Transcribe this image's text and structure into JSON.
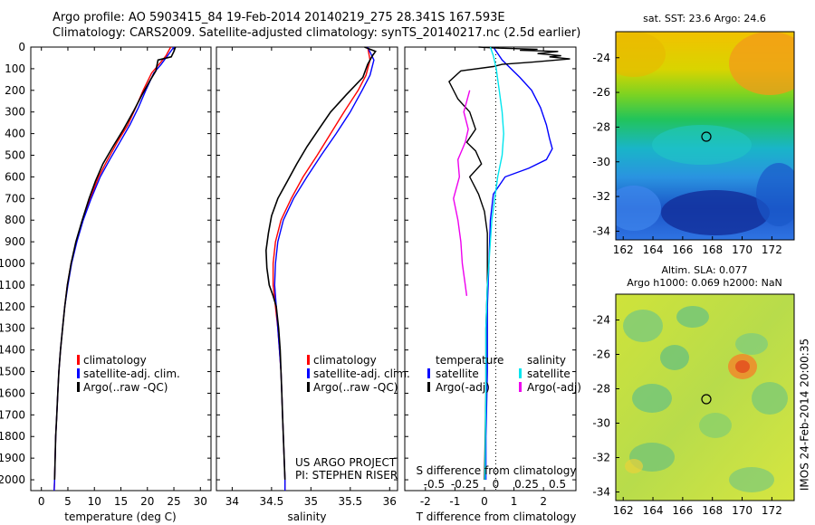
{
  "header": {
    "line1": "Argo profile: AO 5903415_84 19-Feb-2014 20140219_275 28.341S 167.593E",
    "line2": "Climatology: CARS2009. Satellite-adjusted climatology: synTS_20140217.nc (2.5d earlier)"
  },
  "colors": {
    "climatology": "#ff0000",
    "satellite": "#0000ff",
    "argo": "#000000",
    "satellite_salinity": "#00e5ee",
    "argo_salinity": "#ee00ee"
  },
  "credits": {
    "line1": "US ARGO PROJECT",
    "line2": "PI: STEPHEN RISER"
  },
  "timestamp": "IMOS 24-Feb-2014 20:00:35",
  "depth_ticks": [
    "0",
    "100",
    "200",
    "300",
    "400",
    "500",
    "600",
    "700",
    "800",
    "900",
    "1000",
    "1100",
    "1200",
    "1300",
    "1400",
    "1500",
    "1600",
    "1700",
    "1800",
    "1900",
    "2000"
  ],
  "chart_data": [
    {
      "type": "line",
      "panel": "temperature",
      "xlabel": "temperature (deg C)",
      "xlim": [
        -2,
        32
      ],
      "ylim": [
        0,
        2050
      ],
      "y_reversed": true,
      "xticks": [
        "0",
        "5",
        "10",
        "15",
        "20",
        "25",
        "30"
      ],
      "legend": [
        "climatology",
        "satellite-adj. clim.",
        "Argo(..raw -QC)"
      ],
      "series": [
        {
          "name": "climatology",
          "color": "#ff0000",
          "points": [
            [
              24.4,
              0
            ],
            [
              23.5,
              40
            ],
            [
              22.2,
              80
            ],
            [
              20.8,
              120
            ],
            [
              19.2,
              200
            ],
            [
              17.8,
              280
            ],
            [
              16.3,
              360
            ],
            [
              14.3,
              440
            ],
            [
              12.5,
              520
            ],
            [
              10.8,
              600
            ],
            [
              9.2,
              700
            ],
            [
              7.8,
              800
            ],
            [
              6.6,
              900
            ],
            [
              5.6,
              1000
            ],
            [
              4.9,
              1100
            ],
            [
              4.4,
              1200
            ],
            [
              4.0,
              1300
            ],
            [
              3.6,
              1400
            ],
            [
              3.3,
              1500
            ],
            [
              3.1,
              1600
            ],
            [
              2.9,
              1700
            ],
            [
              2.7,
              1800
            ],
            [
              2.6,
              1900
            ],
            [
              2.5,
              2000
            ],
            [
              2.4,
              2050
            ]
          ]
        },
        {
          "name": "satellite-adj. clim.",
          "color": "#0000ff",
          "points": [
            [
              25.0,
              0
            ],
            [
              23.8,
              40
            ],
            [
              22.6,
              80
            ],
            [
              21.2,
              120
            ],
            [
              19.7,
              200
            ],
            [
              18.3,
              280
            ],
            [
              16.7,
              360
            ],
            [
              14.8,
              440
            ],
            [
              12.9,
              520
            ],
            [
              11.1,
              600
            ],
            [
              9.4,
              700
            ],
            [
              7.9,
              800
            ],
            [
              6.7,
              900
            ],
            [
              5.7,
              1000
            ],
            [
              5.0,
              1100
            ],
            [
              4.4,
              1200
            ],
            [
              4.0,
              1300
            ],
            [
              3.6,
              1400
            ],
            [
              3.3,
              1500
            ],
            [
              3.1,
              1600
            ],
            [
              2.9,
              1700
            ],
            [
              2.7,
              1800
            ],
            [
              2.6,
              1900
            ],
            [
              2.5,
              2000
            ],
            [
              2.4,
              2050
            ]
          ]
        },
        {
          "name": "Argo(..raw -QC)",
          "color": "#000000",
          "points": [
            [
              25.3,
              0
            ],
            [
              25.0,
              20
            ],
            [
              24.5,
              45
            ],
            [
              22.0,
              60
            ],
            [
              21.6,
              110
            ],
            [
              20.6,
              150
            ],
            [
              19.0,
              220
            ],
            [
              17.3,
              300
            ],
            [
              15.5,
              380
            ],
            [
              13.5,
              460
            ],
            [
              11.6,
              540
            ],
            [
              10.2,
              620
            ],
            [
              9.0,
              700
            ],
            [
              7.7,
              800
            ],
            [
              6.5,
              900
            ],
            [
              5.6,
              1000
            ],
            [
              4.9,
              1100
            ],
            [
              4.4,
              1200
            ],
            [
              4.0,
              1300
            ],
            [
              3.6,
              1400
            ],
            [
              3.3,
              1500
            ],
            [
              3.1,
              1600
            ],
            [
              2.9,
              1700
            ],
            [
              2.7,
              1800
            ],
            [
              2.6,
              1900
            ],
            [
              2.5,
              2000
            ]
          ]
        }
      ]
    },
    {
      "type": "line",
      "panel": "salinity",
      "xlabel": "salinity",
      "xlim": [
        33.8,
        36.1
      ],
      "ylim": [
        0,
        2050
      ],
      "y_reversed": true,
      "xticks": [
        "34",
        "34.5",
        "35",
        "35.5",
        "36"
      ],
      "legend": [
        "climatology",
        "satellite-adj. clim.",
        "Argo(..raw -QC)"
      ],
      "series": [
        {
          "name": "climatology",
          "color": "#ff0000",
          "points": [
            [
              35.72,
              0
            ],
            [
              35.75,
              60
            ],
            [
              35.7,
              130
            ],
            [
              35.6,
              200
            ],
            [
              35.42,
              300
            ],
            [
              35.25,
              400
            ],
            [
              35.08,
              500
            ],
            [
              34.9,
              600
            ],
            [
              34.75,
              700
            ],
            [
              34.62,
              800
            ],
            [
              34.55,
              900
            ],
            [
              34.52,
              1000
            ],
            [
              34.52,
              1100
            ],
            [
              34.55,
              1200
            ],
            [
              34.58,
              1300
            ],
            [
              34.6,
              1400
            ],
            [
              34.62,
              1500
            ],
            [
              34.63,
              1600
            ],
            [
              34.64,
              1700
            ],
            [
              34.65,
              1800
            ],
            [
              34.66,
              1900
            ],
            [
              34.67,
              2000
            ],
            [
              34.67,
              2050
            ]
          ]
        },
        {
          "name": "satellite-adj. clim.",
          "color": "#0000ff",
          "points": [
            [
              35.72,
              0
            ],
            [
              35.8,
              60
            ],
            [
              35.75,
              130
            ],
            [
              35.65,
              200
            ],
            [
              35.5,
              300
            ],
            [
              35.32,
              400
            ],
            [
              35.13,
              500
            ],
            [
              34.95,
              600
            ],
            [
              34.78,
              700
            ],
            [
              34.65,
              800
            ],
            [
              34.58,
              900
            ],
            [
              34.55,
              1000
            ],
            [
              34.54,
              1100
            ],
            [
              34.56,
              1200
            ],
            [
              34.58,
              1300
            ],
            [
              34.6,
              1400
            ],
            [
              34.62,
              1500
            ],
            [
              34.63,
              1600
            ],
            [
              34.64,
              1700
            ],
            [
              34.65,
              1800
            ],
            [
              34.66,
              1900
            ],
            [
              34.67,
              2000
            ],
            [
              34.67,
              2050
            ]
          ]
        },
        {
          "name": "Argo(..raw -QC)",
          "color": "#000000",
          "points": [
            [
              35.68,
              0
            ],
            [
              35.82,
              20
            ],
            [
              35.78,
              40
            ],
            [
              35.72,
              80
            ],
            [
              35.66,
              140
            ],
            [
              35.45,
              220
            ],
            [
              35.25,
              300
            ],
            [
              35.1,
              380
            ],
            [
              34.95,
              460
            ],
            [
              34.82,
              540
            ],
            [
              34.7,
              620
            ],
            [
              34.58,
              700
            ],
            [
              34.5,
              780
            ],
            [
              34.46,
              860
            ],
            [
              34.43,
              940
            ],
            [
              34.44,
              1020
            ],
            [
              34.47,
              1100
            ],
            [
              34.52,
              1150
            ],
            [
              34.56,
              1200
            ],
            [
              34.59,
              1300
            ],
            [
              34.61,
              1400
            ],
            [
              34.62,
              1500
            ],
            [
              34.63,
              1600
            ],
            [
              34.64,
              1700
            ],
            [
              34.65,
              1800
            ],
            [
              34.66,
              1900
            ],
            [
              34.67,
              2000
            ]
          ]
        }
      ]
    },
    {
      "type": "line",
      "panel": "difference",
      "xlabel_top": "S difference from climatology",
      "xlabel": "T difference from climatology",
      "xlim": [
        -2.7,
        3.1
      ],
      "ylim": [
        0,
        2050
      ],
      "y_reversed": true,
      "xticks": [
        "-2",
        "-1",
        "0",
        "1",
        "2"
      ],
      "xticks_top": [
        "-0.5",
        "-0.25",
        "0",
        "0.25",
        "0.5"
      ],
      "legend_groups": {
        "temperature": "temperature",
        "salinity": "salinity"
      },
      "legend": [
        "satellite",
        "Argo(-adj)",
        "satellite",
        "Argo(-adj)"
      ],
      "series": [
        {
          "name": "satellite",
          "color": "#0000ff",
          "points": [
            [
              0.3,
              0
            ],
            [
              0.6,
              60
            ],
            [
              1.2,
              140
            ],
            [
              1.6,
              200
            ],
            [
              1.9,
              280
            ],
            [
              2.1,
              360
            ],
            [
              2.2,
              420
            ],
            [
              2.3,
              470
            ],
            [
              2.1,
              520
            ],
            [
              1.5,
              560
            ],
            [
              0.7,
              600
            ],
            [
              0.3,
              680
            ],
            [
              0.2,
              800
            ],
            [
              0.15,
              1000
            ],
            [
              0.1,
              1200
            ],
            [
              0.1,
              1500
            ],
            [
              0.05,
              1800
            ],
            [
              0.05,
              2000
            ]
          ]
        },
        {
          "name": "Argo(-adj)",
          "color": "#000000",
          "points": [
            [
              -0.2,
              0
            ],
            [
              0.5,
              5
            ],
            [
              1.8,
              10
            ],
            [
              1.2,
              15
            ],
            [
              2.5,
              20
            ],
            [
              1.8,
              30
            ],
            [
              2.6,
              40
            ],
            [
              2.2,
              45
            ],
            [
              2.9,
              55
            ],
            [
              1.6,
              70
            ],
            [
              0.6,
              80
            ],
            [
              0.3,
              90
            ],
            [
              -0.8,
              110
            ],
            [
              -1.2,
              160
            ],
            [
              -0.9,
              240
            ],
            [
              -0.5,
              300
            ],
            [
              -0.3,
              380
            ],
            [
              -0.6,
              440
            ],
            [
              -0.3,
              480
            ],
            [
              -0.1,
              540
            ],
            [
              -0.5,
              600
            ],
            [
              -0.2,
              680
            ],
            [
              0.0,
              760
            ],
            [
              0.1,
              860
            ],
            [
              0.1,
              960
            ],
            [
              0.1,
              1100
            ],
            [
              0.05,
              1300
            ],
            [
              0.05,
              1600
            ],
            [
              0.0,
              2000
            ]
          ]
        },
        {
          "name": "satellite",
          "color": "#00e5ee",
          "points": [
            [
              0.2,
              0
            ],
            [
              0.3,
              40
            ],
            [
              0.4,
              100
            ],
            [
              0.5,
              200
            ],
            [
              0.6,
              300
            ],
            [
              0.65,
              400
            ],
            [
              0.6,
              500
            ],
            [
              0.45,
              600
            ],
            [
              0.35,
              700
            ],
            [
              0.25,
              800
            ],
            [
              0.2,
              900
            ],
            [
              0.15,
              1000
            ],
            [
              0.1,
              1100
            ],
            [
              0.05,
              1300
            ],
            [
              0.05,
              1600
            ],
            [
              0.02,
              2000
            ]
          ]
        },
        {
          "name": "Argo(-adj)",
          "color": "#ee00ee",
          "points": [
            [
              -0.5,
              200
            ],
            [
              -0.7,
              300
            ],
            [
              -0.55,
              380
            ],
            [
              -0.65,
              440
            ],
            [
              -0.9,
              520
            ],
            [
              -0.85,
              600
            ],
            [
              -1.05,
              700
            ],
            [
              -0.9,
              800
            ],
            [
              -0.8,
              900
            ],
            [
              -0.75,
              1000
            ],
            [
              -0.65,
              1100
            ],
            [
              -0.6,
              1150
            ]
          ]
        }
      ]
    }
  ],
  "sst_map": {
    "title": "sat. SST: 23.6 Argo: 24.6",
    "xticks": [
      "162",
      "164",
      "166",
      "168",
      "170",
      "172"
    ],
    "yticks": [
      "-24",
      "-26",
      "-28",
      "-30",
      "-32",
      "-34"
    ],
    "xlim": [
      161.5,
      173.5
    ],
    "ylim": [
      -34.5,
      -22.5
    ],
    "float_position": [
      167.593,
      -28.341
    ]
  },
  "sla_map": {
    "title_line1": "Altim. SLA: 0.077",
    "title_line2": "Argo h1000: 0.069 h2000: NaN",
    "xticks": [
      "162",
      "164",
      "166",
      "168",
      "170",
      "172"
    ],
    "yticks": [
      "-24",
      "-26",
      "-28",
      "-30",
      "-32",
      "-34"
    ],
    "xlim": [
      161.5,
      173.5
    ],
    "ylim": [
      -34.5,
      -22.5
    ],
    "float_position": [
      167.593,
      -28.341
    ]
  }
}
